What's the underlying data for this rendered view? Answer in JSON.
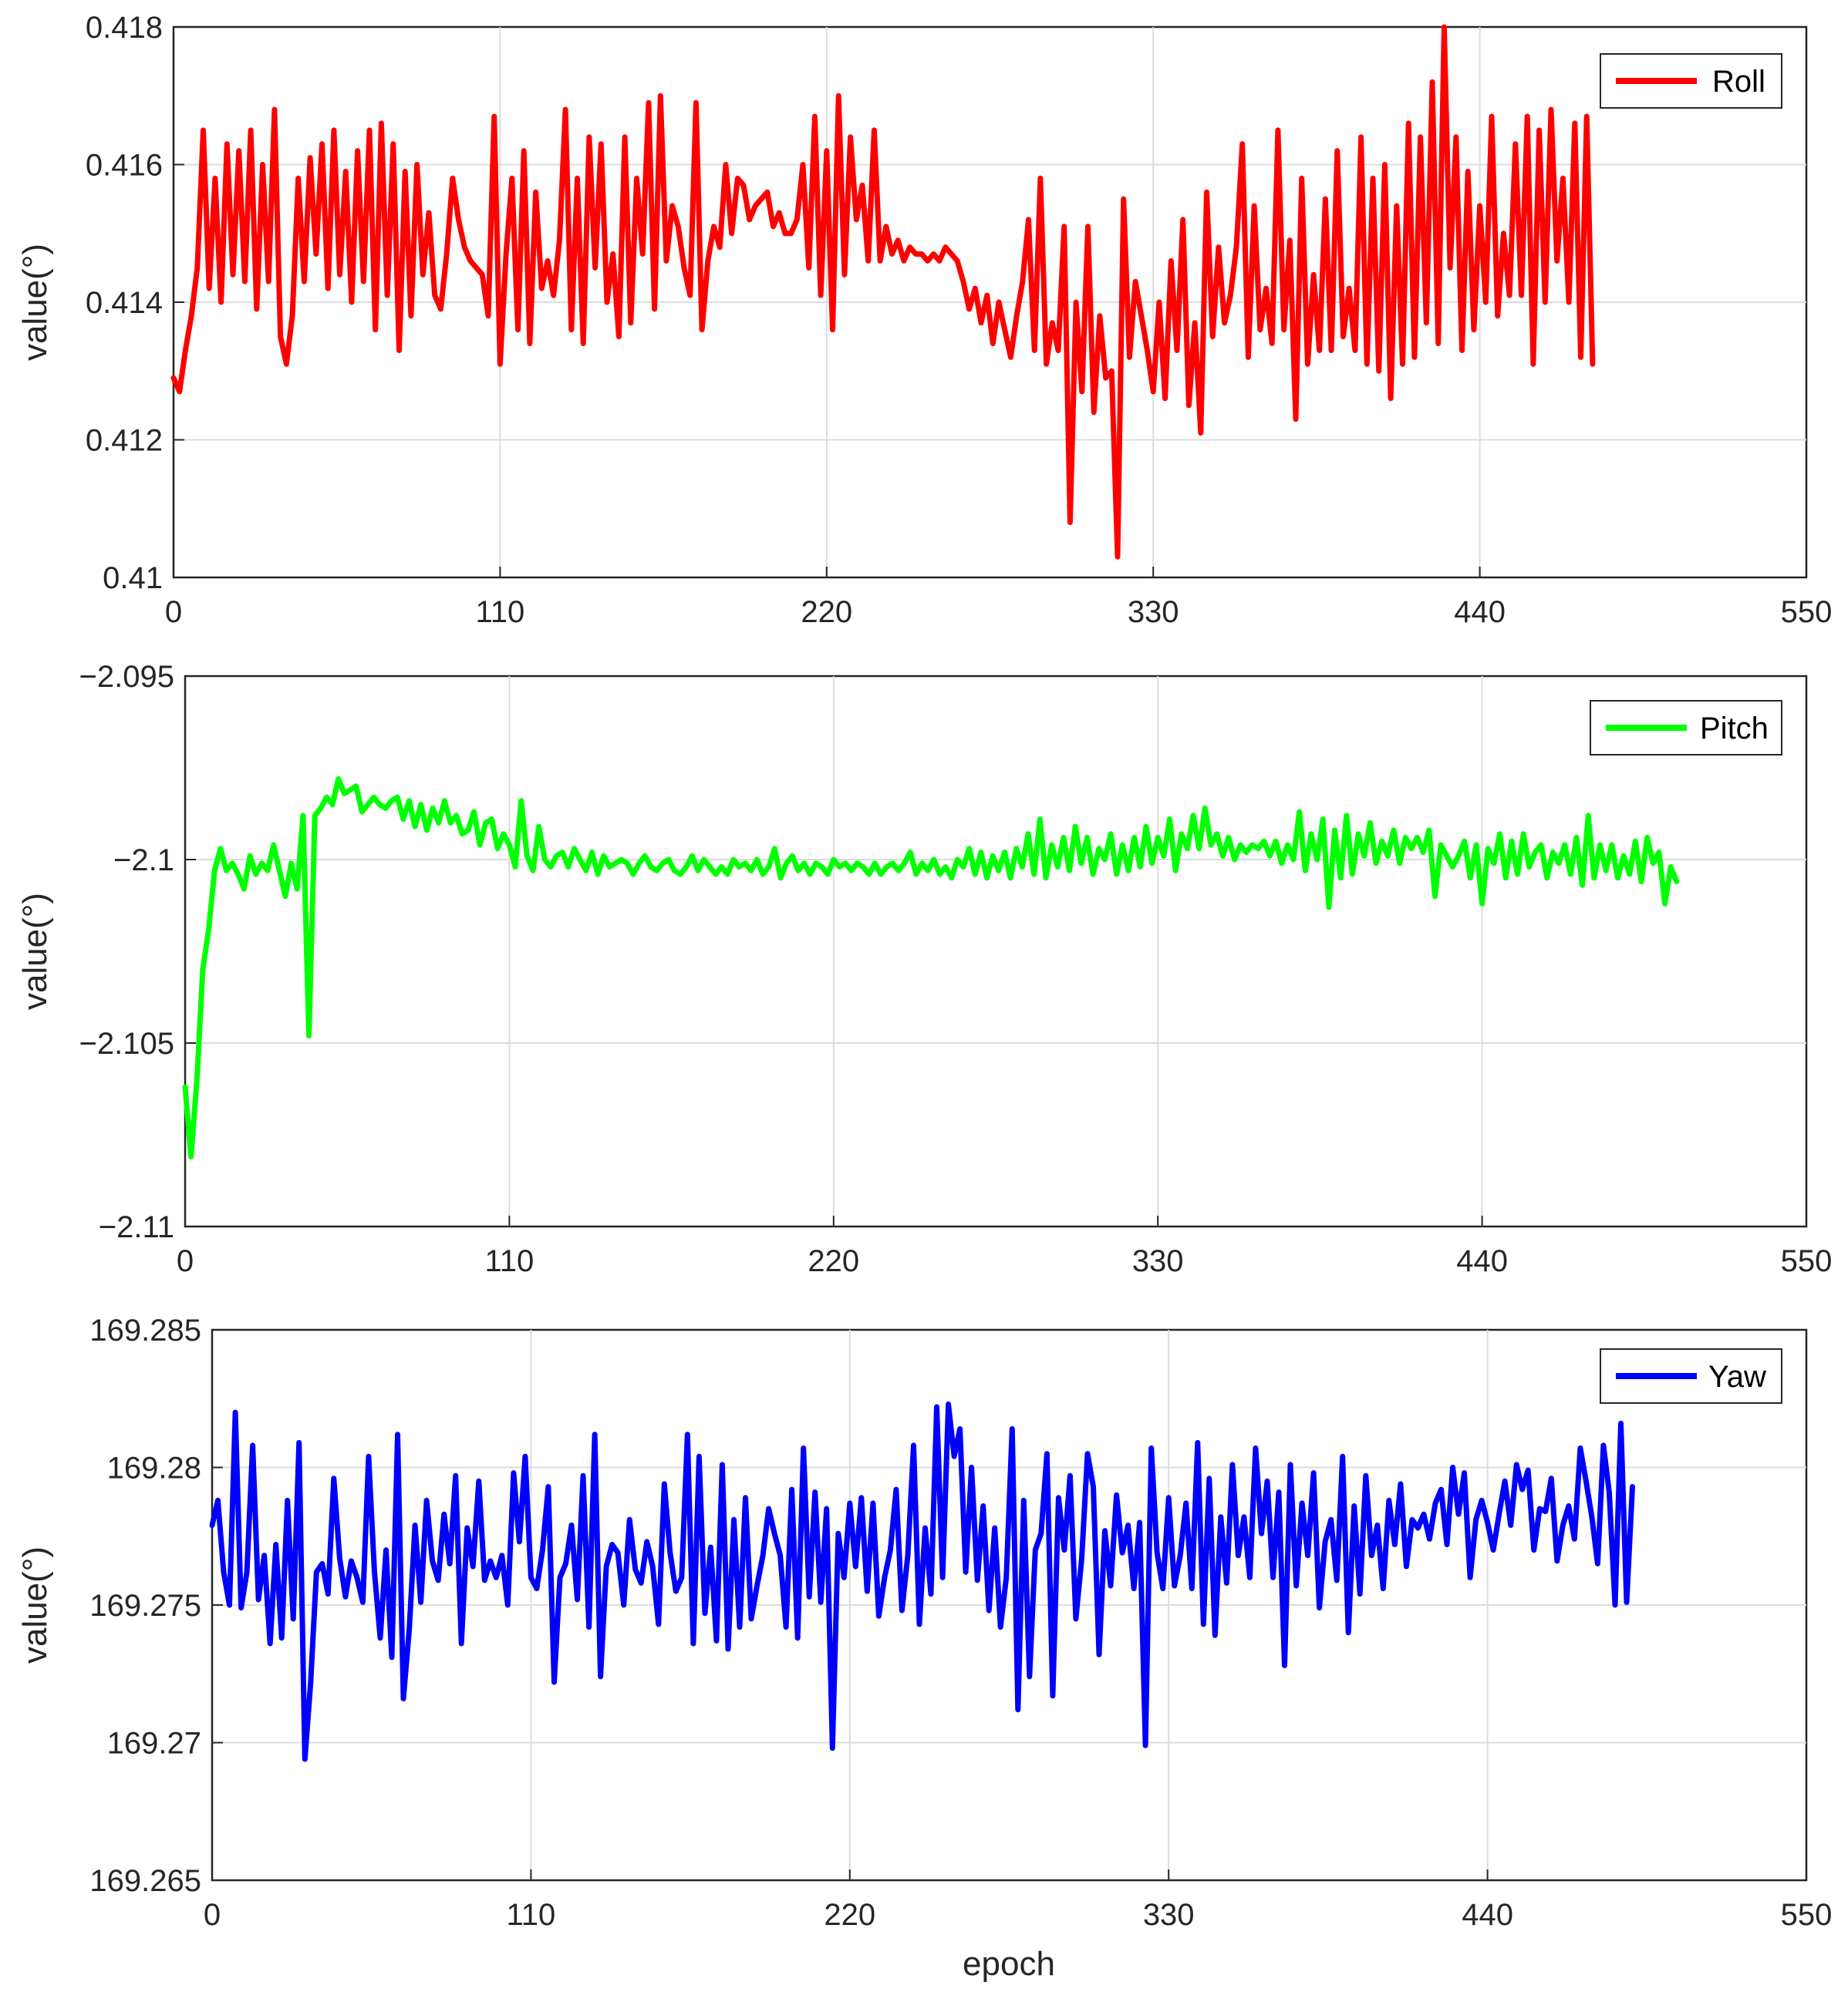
{
  "chart_data": [
    {
      "type": "line",
      "ylabel": "value(°)",
      "xlabel": "",
      "xlim": [
        0,
        550
      ],
      "ylim": [
        0.41,
        0.418
      ],
      "xticks": [
        0,
        110,
        220,
        330,
        440,
        550
      ],
      "xtick_labels": [
        "0",
        "110",
        "220",
        "330",
        "440",
        "550"
      ],
      "yticks": [
        0.41,
        0.412,
        0.414,
        0.416,
        0.418
      ],
      "ytick_labels": [
        "0.41",
        "0.412",
        "0.414",
        "0.416",
        "0.418"
      ],
      "grid": true,
      "legend": "top-right",
      "series": [
        {
          "name": "Roll",
          "color": "#ff0000",
          "x_start": 0,
          "x_step": 2,
          "values": [
            0.4129,
            0.4127,
            0.4133,
            0.4138,
            0.4145,
            0.4165,
            0.4142,
            0.4158,
            0.414,
            0.4163,
            0.4144,
            0.4162,
            0.4143,
            0.4165,
            0.4139,
            0.416,
            0.4143,
            0.4168,
            0.4135,
            0.4131,
            0.4138,
            0.4158,
            0.4143,
            0.4161,
            0.4147,
            0.4163,
            0.4142,
            0.4165,
            0.4144,
            0.4159,
            0.414,
            0.4162,
            0.4143,
            0.4165,
            0.4136,
            0.4166,
            0.4141,
            0.4163,
            0.4133,
            0.4159,
            0.4138,
            0.416,
            0.4144,
            0.4153,
            0.4141,
            0.4139,
            0.4147,
            0.4158,
            0.4152,
            0.4148,
            0.4146,
            0.4145,
            0.4144,
            0.4138,
            0.4167,
            0.4131,
            0.4147,
            0.4158,
            0.4136,
            0.4162,
            0.4134,
            0.4156,
            0.4142,
            0.4146,
            0.4141,
            0.4149,
            0.4168,
            0.4136,
            0.4158,
            0.4134,
            0.4164,
            0.4145,
            0.4163,
            0.414,
            0.4147,
            0.4135,
            0.4164,
            0.4137,
            0.4158,
            0.4147,
            0.4169,
            0.4139,
            0.417,
            0.4146,
            0.4154,
            0.4151,
            0.4145,
            0.4141,
            0.4169,
            0.4136,
            0.4146,
            0.4151,
            0.4148,
            0.416,
            0.415,
            0.4158,
            0.4157,
            0.4152,
            0.4154,
            0.4155,
            0.4156,
            0.4151,
            0.4153,
            0.415,
            0.415,
            0.4152,
            0.416,
            0.4145,
            0.4167,
            0.4141,
            0.4162,
            0.4136,
            0.417,
            0.4144,
            0.4164,
            0.4152,
            0.4157,
            0.4146,
            0.4165,
            0.4146,
            0.4151,
            0.4147,
            0.4149,
            0.4146,
            0.4148,
            0.4147,
            0.4147,
            0.4146,
            0.4147,
            0.4146,
            0.4148,
            0.4147,
            0.4146,
            0.4143,
            0.4139,
            0.4142,
            0.4137,
            0.4141,
            0.4134,
            0.414,
            0.4136,
            0.4132,
            0.4138,
            0.4143,
            0.4152,
            0.4133,
            0.4158,
            0.4131,
            0.4137,
            0.4133,
            0.4151,
            0.4108,
            0.414,
            0.4127,
            0.4151,
            0.4124,
            0.4138,
            0.4129,
            0.413,
            0.4103,
            0.4155,
            0.4132,
            0.4143,
            0.4138,
            0.4133,
            0.4127,
            0.414,
            0.4126,
            0.4146,
            0.4133,
            0.4152,
            0.4125,
            0.4137,
            0.4121,
            0.4156,
            0.4135,
            0.4148,
            0.4137,
            0.4141,
            0.4148,
            0.4163,
            0.4132,
            0.4154,
            0.4136,
            0.4142,
            0.4134,
            0.4165,
            0.4136,
            0.4149,
            0.4123,
            0.4158,
            0.4131,
            0.4144,
            0.4133,
            0.4155,
            0.4133,
            0.4162,
            0.4135,
            0.4142,
            0.4133,
            0.4164,
            0.4131,
            0.4158,
            0.413,
            0.416,
            0.4126,
            0.4154,
            0.4131,
            0.4166,
            0.4132,
            0.4164,
            0.4137,
            0.4172,
            0.4134,
            0.418,
            0.4145,
            0.4164,
            0.4133,
            0.4159,
            0.4136,
            0.4154,
            0.414,
            0.4167,
            0.4138,
            0.415,
            0.4141,
            0.4163,
            0.4141,
            0.4167,
            0.4131,
            0.4165,
            0.414,
            0.4168,
            0.4146,
            0.4158,
            0.414,
            0.4166,
            0.4132,
            0.4167,
            0.4131
          ]
        }
      ]
    },
    {
      "type": "line",
      "ylabel": "value(°)",
      "xlabel": "",
      "xlim": [
        0,
        550
      ],
      "ylim": [
        -2.11,
        -2.095
      ],
      "xticks": [
        0,
        110,
        220,
        330,
        440,
        550
      ],
      "xtick_labels": [
        "0",
        "110",
        "220",
        "330",
        "440",
        "550"
      ],
      "yticks": [
        -2.11,
        -2.105,
        -2.1,
        -2.095
      ],
      "ytick_labels": [
        "−2.11",
        "−2.105",
        "−2.1",
        "−2.095"
      ],
      "grid": true,
      "legend": "top-right",
      "series": [
        {
          "name": "Pitch",
          "color": "#00ff00",
          "x_start": 0,
          "x_step": 2,
          "values": [
            -2.1062,
            -2.1081,
            -2.106,
            -2.103,
            -2.1019,
            -2.1003,
            -2.0997,
            -2.1003,
            -2.1001,
            -2.1004,
            -2.1008,
            -2.0999,
            -2.1004,
            -2.1001,
            -2.1003,
            -2.0996,
            -2.1003,
            -2.101,
            -2.1001,
            -2.1008,
            -2.0988,
            -2.1048,
            -2.0988,
            -2.0986,
            -2.0983,
            -2.0985,
            -2.0978,
            -2.0982,
            -2.0981,
            -2.098,
            -2.0987,
            -2.0985,
            -2.0983,
            -2.0985,
            -2.0986,
            -2.0984,
            -2.0983,
            -2.0989,
            -2.0984,
            -2.0991,
            -2.0985,
            -2.0992,
            -2.0986,
            -2.099,
            -2.0984,
            -2.099,
            -2.0988,
            -2.0993,
            -2.0992,
            -2.0987,
            -2.0996,
            -2.099,
            -2.0989,
            -2.0997,
            -2.0993,
            -2.0996,
            -2.1002,
            -2.0984,
            -2.0999,
            -2.1003,
            -2.0991,
            -2.1,
            -2.1002,
            -2.0999,
            -2.0998,
            -2.1002,
            -2.0997,
            -2.1,
            -2.1003,
            -2.0998,
            -2.1004,
            -2.0999,
            -2.1002,
            -2.1001,
            -2.1,
            -2.1001,
            -2.1004,
            -2.1001,
            -2.0999,
            -2.1002,
            -2.1003,
            -2.1001,
            -2.1,
            -2.1003,
            -2.1004,
            -2.1002,
            -2.0999,
            -2.1003,
            -2.1,
            -2.1002,
            -2.1004,
            -2.1002,
            -2.1004,
            -2.1,
            -2.1002,
            -2.1001,
            -2.1003,
            -2.1,
            -2.1004,
            -2.1002,
            -2.0997,
            -2.1005,
            -2.1001,
            -2.0999,
            -2.1003,
            -2.1001,
            -2.1004,
            -2.1001,
            -2.1002,
            -2.1004,
            -2.1,
            -2.1002,
            -2.1001,
            -2.1003,
            -2.1001,
            -2.1002,
            -2.1004,
            -2.1001,
            -2.1004,
            -2.1002,
            -2.1001,
            -2.1003,
            -2.1001,
            -2.0998,
            -2.1004,
            -2.1001,
            -2.1003,
            -2.1,
            -2.1004,
            -2.1002,
            -2.1005,
            -2.1,
            -2.1002,
            -2.0997,
            -2.1004,
            -2.0998,
            -2.1005,
            -2.0999,
            -2.1003,
            -2.0998,
            -2.1005,
            -2.0997,
            -2.1002,
            -2.0993,
            -2.1004,
            -2.0989,
            -2.1005,
            -2.0996,
            -2.1002,
            -2.0994,
            -2.1003,
            -2.0991,
            -2.1001,
            -2.0994,
            -2.1004,
            -2.0997,
            -2.1,
            -2.0993,
            -2.1004,
            -2.0996,
            -2.1003,
            -2.0994,
            -2.1002,
            -2.0991,
            -2.1001,
            -2.0994,
            -2.0999,
            -2.0989,
            -2.1003,
            -2.0993,
            -2.0997,
            -2.0988,
            -2.0997,
            -2.0986,
            -2.0996,
            -2.0993,
            -2.0999,
            -2.0994,
            -2.1,
            -2.0996,
            -2.0998,
            -2.0996,
            -2.0997,
            -2.0995,
            -2.0999,
            -2.0995,
            -2.1001,
            -2.0996,
            -2.1,
            -2.0987,
            -2.1003,
            -2.0993,
            -2.1,
            -2.0989,
            -2.1013,
            -2.0992,
            -2.1005,
            -2.0988,
            -2.1004,
            -2.0993,
            -2.0999,
            -2.099,
            -2.1001,
            -2.0995,
            -2.0999,
            -2.0992,
            -2.1001,
            -2.0994,
            -2.0997,
            -2.0994,
            -2.0998,
            -2.0992,
            -2.101,
            -2.0996,
            -2.0999,
            -2.1002,
            -2.0999,
            -2.0995,
            -2.1005,
            -2.0996,
            -2.1012,
            -2.0997,
            -2.1001,
            -2.0993,
            -2.1005,
            -2.0995,
            -2.1004,
            -2.0993,
            -2.1002,
            -2.0998,
            -2.0996,
            -2.1005,
            -2.0998,
            -2.1001,
            -2.0996,
            -2.1004,
            -2.0994,
            -2.1007,
            -2.0988,
            -2.1005,
            -2.0996,
            -2.1003,
            -2.0996,
            -2.1005,
            -2.0999,
            -2.1004,
            -2.0995,
            -2.1006,
            -2.0994,
            -2.1001,
            -2.0998,
            -2.1012,
            -2.1002,
            -2.1006
          ]
        }
      ]
    },
    {
      "type": "line",
      "ylabel": "value(°)",
      "xlabel": "epoch",
      "xlim": [
        0,
        550
      ],
      "ylim": [
        169.265,
        169.285
      ],
      "xticks": [
        0,
        110,
        220,
        330,
        440,
        550
      ],
      "xtick_labels": [
        "0",
        "110",
        "220",
        "330",
        "440",
        "550"
      ],
      "yticks": [
        169.265,
        169.27,
        169.275,
        169.28,
        169.285
      ],
      "ytick_labels": [
        "169.265",
        "169.27",
        "169.275",
        "169.28",
        "169.285"
      ],
      "grid": true,
      "legend": "top-right",
      "series": [
        {
          "name": "Yaw",
          "color": "#0000ff",
          "x_start": 0,
          "x_step": 2,
          "values": [
            169.2779,
            169.2788,
            169.2762,
            169.275,
            169.282,
            169.2749,
            169.2762,
            169.2808,
            169.2752,
            169.2768,
            169.2736,
            169.2772,
            169.2738,
            169.2788,
            169.2745,
            169.2809,
            169.2694,
            169.2722,
            169.2762,
            169.2765,
            169.2754,
            169.2796,
            169.2767,
            169.2753,
            169.2766,
            169.276,
            169.2751,
            169.2804,
            169.2762,
            169.2738,
            169.277,
            169.2731,
            169.2812,
            169.2716,
            169.2741,
            169.2779,
            169.2751,
            169.2788,
            169.2766,
            169.2759,
            169.2783,
            169.2765,
            169.2797,
            169.2736,
            169.2778,
            169.2764,
            169.2795,
            169.2759,
            169.2766,
            169.276,
            169.2768,
            169.275,
            169.2798,
            169.2773,
            169.2804,
            169.276,
            169.2756,
            169.277,
            169.2793,
            169.2722,
            169.276,
            169.2765,
            169.2779,
            169.2752,
            169.2797,
            169.2742,
            169.2812,
            169.2724,
            169.2764,
            169.2772,
            169.2769,
            169.275,
            169.2781,
            169.2763,
            169.2758,
            169.2773,
            169.2764,
            169.2743,
            169.2794,
            169.2769,
            169.2755,
            169.276,
            169.2812,
            169.2736,
            169.2804,
            169.2747,
            169.2771,
            169.2737,
            169.2801,
            169.2734,
            169.2781,
            169.2742,
            169.2789,
            169.2745,
            169.2757,
            169.2768,
            169.2785,
            169.2776,
            169.2768,
            169.2742,
            169.2792,
            169.2738,
            169.2807,
            169.2753,
            169.2791,
            169.2751,
            169.2785,
            169.2698,
            169.2776,
            169.276,
            169.2787,
            169.2764,
            169.2789,
            169.2755,
            169.2787,
            169.2746,
            169.276,
            169.277,
            169.2792,
            169.2748,
            169.2768,
            169.2808,
            169.2743,
            169.2778,
            169.2754,
            169.2822,
            169.276,
            169.2823,
            169.2804,
            169.2814,
            169.2762,
            169.28,
            169.2759,
            169.2786,
            169.2748,
            169.2778,
            169.2742,
            169.276,
            169.2814,
            169.2712,
            169.2788,
            169.2724,
            169.277,
            169.2776,
            169.2805,
            169.2717,
            169.2789,
            169.277,
            169.2797,
            169.2745,
            169.2767,
            169.2805,
            169.2793,
            169.2732,
            169.2777,
            169.2757,
            169.279,
            169.2769,
            169.2779,
            169.2756,
            169.278,
            169.2699,
            169.2807,
            169.2769,
            169.2756,
            169.2789,
            169.2757,
            169.2768,
            169.2787,
            169.2756,
            169.2809,
            169.2743,
            169.2796,
            169.2739,
            169.2782,
            169.2758,
            169.2801,
            169.2768,
            169.2782,
            169.276,
            169.2807,
            169.2776,
            169.2795,
            169.276,
            169.2791,
            169.2728,
            169.2801,
            169.2757,
            169.2787,
            169.2768,
            169.2798,
            169.2749,
            169.2773,
            169.2781,
            169.2759,
            169.2804,
            169.274,
            169.2786,
            169.2754,
            169.2797,
            169.2768,
            169.2779,
            169.2756,
            169.2788,
            169.2772,
            169.2794,
            169.2764,
            169.2781,
            169.2778,
            169.2783,
            169.2774,
            169.2787,
            169.2792,
            169.2772,
            169.28,
            169.2783,
            169.2798,
            169.276,
            169.2781,
            169.2788,
            169.278,
            169.277,
            169.2783,
            169.2795,
            169.2779,
            169.2801,
            169.2792,
            169.2799,
            169.277,
            169.2785,
            169.2784,
            169.2796,
            169.2766,
            169.2779,
            169.2786,
            169.2774,
            169.2807,
            169.2795,
            169.2782,
            169.2765,
            169.2808,
            169.2791,
            169.275,
            169.2816,
            169.2751,
            169.2793
          ]
        }
      ]
    }
  ]
}
